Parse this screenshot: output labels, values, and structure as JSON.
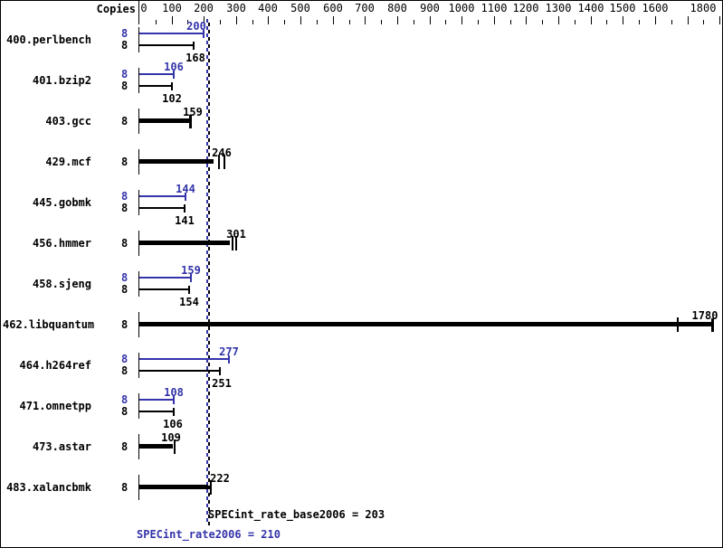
{
  "colors": {
    "peak": "#3333aa",
    "base": "#000000",
    "background": "#ffffff"
  },
  "chart_data": {
    "type": "bar",
    "orientation": "horizontal",
    "title": "",
    "copies_header": "Copies",
    "unit_axis": {
      "min": 0,
      "max": 1800,
      "minor_step": 50,
      "major_step": 100,
      "labeled_values": [
        0,
        100,
        200,
        300,
        400,
        500,
        600,
        700,
        800,
        900,
        1000,
        1100,
        1200,
        1300,
        1400,
        1500,
        1600,
        1800
      ]
    },
    "benchmarks": [
      {
        "name": "400.perlbench",
        "style": "double",
        "peak": {
          "copies": "8",
          "value": 200,
          "label": "200",
          "label_dx": -8
        },
        "base": {
          "copies": "8",
          "value": 168,
          "label": "168",
          "label_dx": 2
        }
      },
      {
        "name": "401.bzip2",
        "style": "double",
        "peak": {
          "copies": "8",
          "value": 106,
          "label": "106",
          "label_dx": 0
        },
        "base": {
          "copies": "8",
          "value": 102,
          "label": "102",
          "label_dx": 0
        }
      },
      {
        "name": "403.gcc",
        "style": "single",
        "copies": "8",
        "label": "159",
        "label_at": 159,
        "label_dx": 2,
        "bar_to": 159,
        "cap": "thick",
        "run_ticks": []
      },
      {
        "name": "429.mcf",
        "style": "single",
        "copies": "8",
        "label": "246",
        "label_at": 246,
        "label_dx": 3,
        "bar_to": 230,
        "cap": "none",
        "run_ticks": [
          246,
          263
        ]
      },
      {
        "name": "445.gobmk",
        "style": "double",
        "peak": {
          "copies": "8",
          "value": 144,
          "label": "144",
          "label_dx": 0
        },
        "base": {
          "copies": "8",
          "value": 141,
          "label": "141",
          "label_dx": 0
        }
      },
      {
        "name": "456.hmmer",
        "style": "single",
        "copies": "8",
        "label": "301",
        "label_at": 301,
        "label_dx": 0,
        "bar_to": 280,
        "cap": "none",
        "run_ticks": [
          290,
          301
        ]
      },
      {
        "name": "458.sjeng",
        "style": "double",
        "peak": {
          "copies": "8",
          "value": 159,
          "label": "159",
          "label_dx": 0
        },
        "base": {
          "copies": "8",
          "value": 154,
          "label": "154",
          "label_dx": 0
        }
      },
      {
        "name": "462.libquantum",
        "style": "single",
        "copies": "8",
        "label": "1780",
        "label_at": 1780,
        "label_dx": 0,
        "bar_to": 1780,
        "cap": "thick",
        "run_ticks": [
          1670
        ]
      },
      {
        "name": "464.h264ref",
        "style": "double",
        "peak": {
          "copies": "8",
          "value": 277,
          "label": "277",
          "label_dx": 0
        },
        "base": {
          "copies": "8",
          "value": 251,
          "label": "251",
          "label_dx": 2
        }
      },
      {
        "name": "471.omnetpp",
        "style": "double",
        "peak": {
          "copies": "8",
          "value": 108,
          "label": "108",
          "label_dx": 0
        },
        "base": {
          "copies": "8",
          "value": 106,
          "label": "106",
          "label_dx": -1
        }
      },
      {
        "name": "473.astar",
        "style": "single",
        "copies": "8",
        "label": "109",
        "label_at": 109,
        "label_dx": -4,
        "bar_to": 104,
        "cap": "none",
        "run_ticks": [
          109
        ]
      },
      {
        "name": "483.xalancbmk",
        "style": "single",
        "copies": "8",
        "label": "222",
        "label_at": 222,
        "label_dx": 10,
        "bar_to": 212,
        "cap": "none",
        "run_ticks": [
          222
        ]
      }
    ],
    "reference_lines": [
      {
        "metric": "SPECint_rate_base2006",
        "value": 203,
        "color": "#000000"
      },
      {
        "metric": "SPECint_rate2006",
        "value": 210,
        "color": "#3333aa"
      }
    ]
  },
  "summary": {
    "base": {
      "text": "SPECint_rate_base2006 = 203"
    },
    "peak": {
      "text": "SPECint_rate2006 = 210"
    }
  }
}
